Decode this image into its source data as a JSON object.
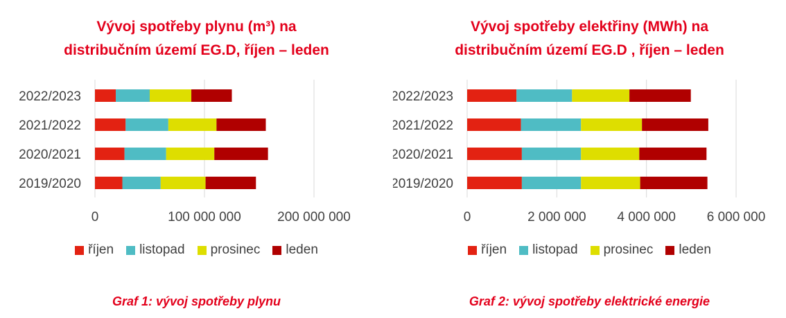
{
  "colors": {
    "title": "#e3001b",
    "series": [
      "#e32212",
      "#4fbcc4",
      "#dede00",
      "#b00000"
    ],
    "grid": "#d9d9d9",
    "text": "#404040"
  },
  "chart_data": [
    {
      "type": "bar",
      "orientation": "horizontal",
      "stacked": true,
      "title_lines": [
        "Vývoj spotřeby plynu (m³) na",
        "distribučním území EG.D, říjen – leden"
      ],
      "categories": [
        "2022/2023",
        "2021/2022",
        "2020/2021",
        "2019/2020"
      ],
      "series": [
        {
          "name": "říjen",
          "values": [
            19000000,
            28000000,
            27000000,
            25000000
          ]
        },
        {
          "name": "listopad",
          "values": [
            31000000,
            39000000,
            38000000,
            35000000
          ]
        },
        {
          "name": "prosinec",
          "values": [
            38000000,
            44000000,
            44000000,
            41000000
          ]
        },
        {
          "name": "leden",
          "values": [
            37000000,
            45000000,
            49000000,
            46000000
          ]
        }
      ],
      "xlim": [
        0,
        200000000
      ],
      "xticks": [
        0,
        100000000,
        200000000
      ],
      "xtick_labels": [
        "0",
        "100 000 000",
        "200 000 000"
      ],
      "grid": true,
      "legend_position": "bottom",
      "caption": "Graf 1: vývoj spotřeby plynu"
    },
    {
      "type": "bar",
      "orientation": "horizontal",
      "stacked": true,
      "title_lines": [
        "Vývoj spotřeby elektřiny (MWh) na",
        "distribučním území EG.D , říjen – leden"
      ],
      "categories": [
        "2022/2023",
        "2021/2022",
        "2020/2021",
        "2019/2020"
      ],
      "series": [
        {
          "name": "říjen",
          "values": [
            1100000,
            1200000,
            1220000,
            1220000
          ]
        },
        {
          "name": "listopad",
          "values": [
            1240000,
            1340000,
            1320000,
            1320000
          ]
        },
        {
          "name": "prosinec",
          "values": [
            1280000,
            1360000,
            1300000,
            1320000
          ]
        },
        {
          "name": "leden",
          "values": [
            1370000,
            1480000,
            1500000,
            1500000
          ]
        }
      ],
      "xlim": [
        0,
        6000000
      ],
      "xticks": [
        0,
        2000000,
        4000000,
        6000000
      ],
      "xtick_labels": [
        "0",
        "2 000 000",
        "4 000 000",
        "6 000 000"
      ],
      "grid": true,
      "legend_position": "bottom",
      "caption": "Graf 2: vývoj spotřeby elektrické energie"
    }
  ]
}
